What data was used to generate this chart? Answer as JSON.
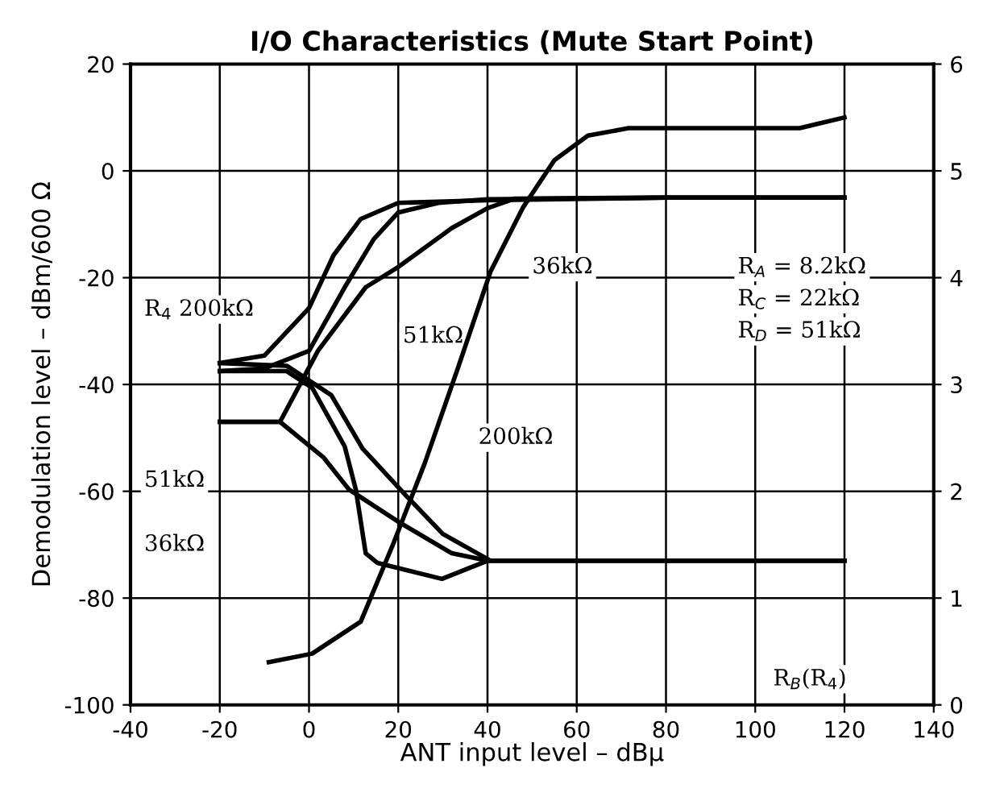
{
  "chart_data": {
    "type": "line",
    "title": "I/O Characteristics (Mute Start Point)",
    "xlabel": "ANT input level – dBμ",
    "ylabel": "Demodulation level – dBm/600 Ω",
    "xlim": [
      -40,
      140
    ],
    "xticks": [
      -40,
      -20,
      0,
      20,
      40,
      60,
      80,
      100,
      120,
      140
    ],
    "ylim": [
      -100,
      20
    ],
    "yticks": [
      -100,
      -80,
      -60,
      -40,
      -20,
      0,
      20
    ],
    "y2lim": [
      0,
      6
    ],
    "y2ticks": [
      0,
      1,
      2,
      3,
      4,
      5,
      6
    ],
    "grid": true,
    "marker": "none",
    "line_style": "solid",
    "series": [
      {
        "color": "#000000",
        "x": [
          -20,
          -10,
          0,
          5.5,
          11.6,
          20,
          40,
          80,
          120
        ],
        "values": [
          -36,
          -34.6,
          -25.7,
          -15.8,
          -9,
          -6,
          -5.5,
          -5,
          -5
        ]
      },
      {
        "color": "#000000",
        "x": [
          -20,
          -10,
          0,
          8,
          14.5,
          20,
          29,
          40,
          80,
          120
        ],
        "values": [
          -37.5,
          -37,
          -33.7,
          -21.8,
          -12.8,
          -7.8,
          -6,
          -5.3,
          -5,
          -5
        ]
      },
      {
        "color": "#000000",
        "x": [
          -20,
          -6.5,
          2,
          12.7,
          20,
          32,
          40,
          46,
          80,
          120
        ],
        "values": [
          -47,
          -47,
          -33.7,
          -21.8,
          -18,
          -10.7,
          -7,
          -5.2,
          -5,
          -5
        ]
      },
      {
        "color": "#000000",
        "x": [
          -20,
          -5,
          5,
          12,
          21.5,
          30,
          40.7,
          80,
          120
        ],
        "values": [
          -36,
          -36.5,
          -42,
          -52,
          -60.6,
          -68,
          -73,
          -73,
          -73
        ]
      },
      {
        "color": "#000000",
        "x": [
          -20,
          -6.5,
          3.3,
          9,
          20,
          32,
          40,
          80,
          120
        ],
        "values": [
          -47,
          -47,
          -53.7,
          -59.7,
          -65.7,
          -71.6,
          -73,
          -73,
          -73
        ]
      },
      {
        "color": "#000000",
        "x": [
          -20,
          -5,
          0.7,
          8,
          10.5,
          12.7,
          15.3,
          29.8,
          40,
          80,
          120
        ],
        "values": [
          -37.5,
          -37.5,
          -40.6,
          -51.6,
          -59.7,
          -71.6,
          -73.4,
          -76.4,
          -73,
          -73,
          -73
        ]
      },
      {
        "color": "#000000",
        "axis": "y2",
        "x": [
          -9,
          0.7,
          11.6,
          19,
          26,
          33.5,
          40.7,
          48,
          55,
          62.5,
          71.6,
          91.6,
          110,
          120
        ],
        "values": [
          0.4,
          0.48,
          0.78,
          1.52,
          2.27,
          3.17,
          4.06,
          4.66,
          5.1,
          5.33,
          5.4,
          5.4,
          5.4,
          5.5
        ]
      }
    ],
    "annotations": [
      "R$_{4}$ 200kΩ",
      "51kΩ",
      "36kΩ",
      "200kΩ",
      "51kΩ",
      "36kΩ",
      "R$_{A}$ = 8.2kΩ",
      "R$_{C}$ = 22kΩ",
      "R$_{D}$ = 51kΩ",
      "R$_{B}$(R$_{4}$)"
    ]
  }
}
